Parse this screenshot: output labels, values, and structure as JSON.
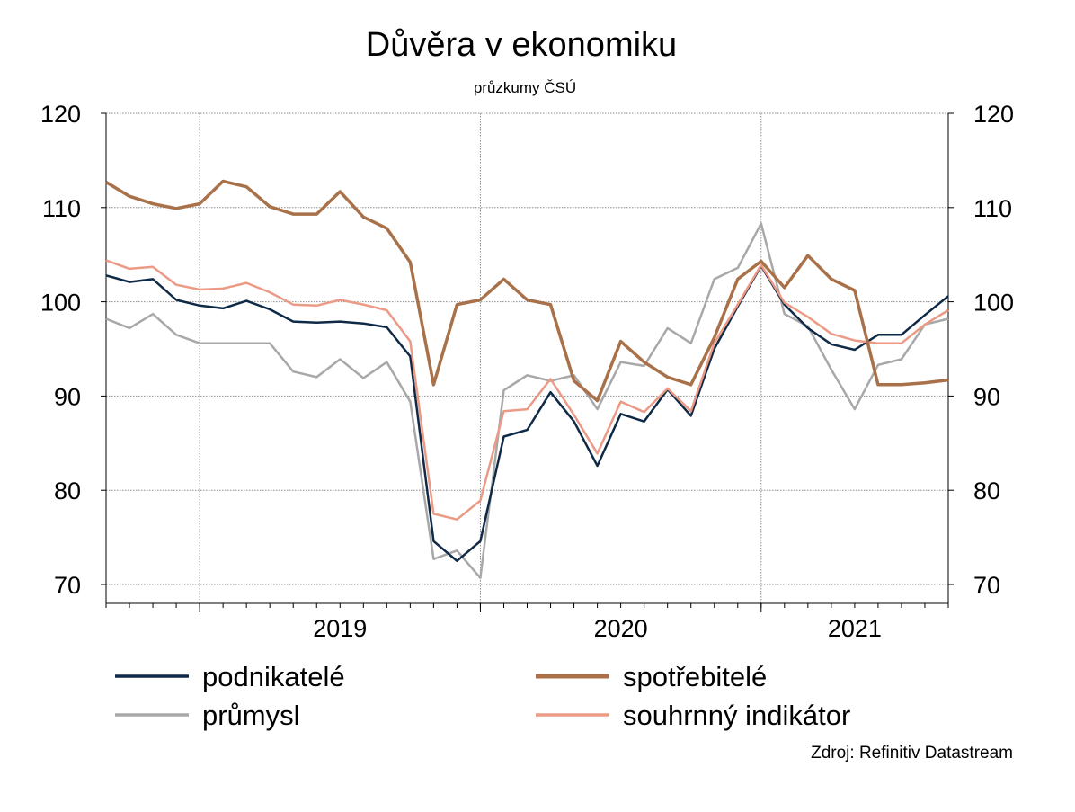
{
  "colors": {
    "podnikatele": "#0f2a47",
    "prumysl": "#a8a8a8",
    "spotrebitele": "#a9714a",
    "souhrnny": "#eb9a86",
    "grid": "#8c8c8c",
    "axis": "#000000"
  },
  "chart_data": {
    "type": "line",
    "title": "Důvěra v ekonomiku",
    "subtitle": "průzkumy ČSÚ",
    "source": "Zdroj: Refinitiv Datastream",
    "xlabel": "",
    "ylabel": "",
    "ylim": [
      68,
      120
    ],
    "yticks": [
      70,
      80,
      90,
      100,
      110,
      120
    ],
    "x_start": "2018-09",
    "x_end": "2021-09",
    "x_tick_labels": [
      "2019",
      "2020",
      "2021"
    ],
    "grid": true,
    "legend_position": "bottom",
    "x": [
      "2018-09",
      "2018-10",
      "2018-11",
      "2018-12",
      "2019-01",
      "2019-02",
      "2019-03",
      "2019-04",
      "2019-05",
      "2019-06",
      "2019-07",
      "2019-08",
      "2019-09",
      "2019-10",
      "2019-11",
      "2019-12",
      "2020-01",
      "2020-02",
      "2020-03",
      "2020-04",
      "2020-05",
      "2020-06",
      "2020-07",
      "2020-08",
      "2020-09",
      "2020-10",
      "2020-11",
      "2020-12",
      "2021-01",
      "2021-02",
      "2021-03",
      "2021-04",
      "2021-05",
      "2021-06",
      "2021-07",
      "2021-08",
      "2021-09"
    ],
    "series": [
      {
        "name": "průmysl",
        "color_key": "prumysl",
        "values": [
          98.2,
          97.2,
          98.7,
          96.5,
          95.6,
          95.6,
          95.6,
          95.6,
          92.6,
          92.0,
          93.9,
          91.9,
          93.6,
          89.4,
          72.7,
          73.6,
          70.7,
          90.6,
          92.2,
          91.6,
          92.2,
          88.6,
          93.6,
          93.2,
          97.2,
          95.6,
          102.4,
          103.6,
          108.3,
          98.7,
          97.4,
          92.8,
          88.6,
          93.3,
          93.9,
          97.6,
          98.2
        ]
      },
      {
        "name": "podnikatelé",
        "color_key": "podnikatele",
        "values": [
          102.8,
          102.1,
          102.4,
          100.2,
          99.6,
          99.3,
          100.1,
          99.2,
          97.9,
          97.8,
          97.9,
          97.7,
          97.3,
          94.2,
          74.6,
          72.5,
          74.6,
          85.7,
          86.4,
          90.4,
          87.3,
          82.6,
          88.1,
          87.3,
          90.7,
          87.9,
          95.0,
          99.5,
          103.8,
          99.7,
          97.2,
          95.5,
          94.9,
          96.5,
          96.5,
          98.6,
          100.6
        ]
      },
      {
        "name": "souhrnný indikátor",
        "color_key": "souhrnny",
        "values": [
          104.4,
          103.5,
          103.7,
          101.8,
          101.3,
          101.4,
          102.0,
          101.0,
          99.7,
          99.6,
          100.2,
          99.7,
          99.1,
          95.8,
          77.5,
          76.9,
          78.9,
          88.4,
          88.6,
          91.8,
          88.0,
          83.9,
          89.4,
          88.3,
          90.8,
          88.4,
          95.6,
          99.7,
          103.9,
          99.9,
          98.4,
          96.6,
          95.9,
          95.6,
          95.6,
          97.6,
          99.1
        ]
      },
      {
        "name": "spotřebitelé",
        "color_key": "spotrebitele",
        "values": [
          112.7,
          111.2,
          110.4,
          109.9,
          110.4,
          112.8,
          112.2,
          110.1,
          109.3,
          109.3,
          111.7,
          109.0,
          107.8,
          104.2,
          91.2,
          99.7,
          100.2,
          102.4,
          100.2,
          99.7,
          91.6,
          89.5,
          95.8,
          93.6,
          92.0,
          91.2,
          96.2,
          102.4,
          104.3,
          101.5,
          104.9,
          102.4,
          101.2,
          91.2,
          91.2,
          91.4,
          91.7
        ]
      }
    ]
  },
  "legend": [
    {
      "label": "podnikatelé",
      "color_key": "podnikatele"
    },
    {
      "label": "spotřebitelé",
      "color_key": "spotrebitele"
    },
    {
      "label": "průmysl",
      "color_key": "prumysl"
    },
    {
      "label": "souhrnný indikátor",
      "color_key": "souhrnny"
    }
  ]
}
